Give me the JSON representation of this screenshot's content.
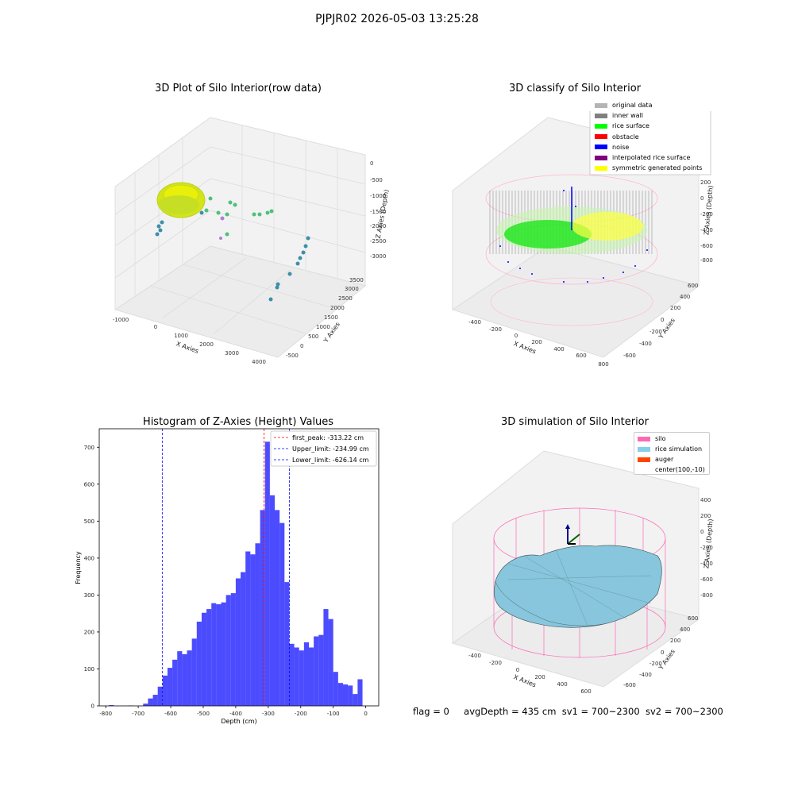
{
  "figure_title": "PJPJR02 2026-05-03 13:25:28",
  "panels": {
    "raw": {
      "title": "3D Plot of Silo Interior(row data)",
      "xlabel": "X Axies",
      "ylabel": "Y Axies",
      "zlabel": "Z Axies (Depth)",
      "xticks": [
        "-1000",
        "0",
        "1000",
        "2000",
        "3000",
        "4000"
      ],
      "yticks": [
        "-500",
        "0",
        "500",
        "1000",
        "1500",
        "2000",
        "2500",
        "3000",
        "3500"
      ],
      "zticks": [
        "0",
        "-500",
        "-1000",
        "-1500",
        "-2000",
        "-2500",
        "-3000"
      ]
    },
    "classify": {
      "title": "3D classify of Silo Interior",
      "xlabel": "X Axies",
      "ylabel": "Y Axies",
      "zlabel": "Z Axies (Depth)",
      "xticks": [
        "-400",
        "-200",
        "0",
        "200",
        "400",
        "600",
        "800"
      ],
      "yticks": [
        "-600",
        "-400",
        "-200",
        "0",
        "200",
        "400",
        "600"
      ],
      "zticks": [
        "200",
        "0",
        "-200",
        "-400",
        "-600",
        "-800"
      ],
      "legend": [
        {
          "label": "original data",
          "color": "#b4b4b4"
        },
        {
          "label": "inner wall",
          "color": "#808080"
        },
        {
          "label": "rice surface",
          "color": "#00ff00"
        },
        {
          "label": "obstacle",
          "color": "#ff0000"
        },
        {
          "label": "noise",
          "color": "#0000ff"
        },
        {
          "label": "interpolated rice surface",
          "color": "#800080"
        },
        {
          "label": "symmetric generated points",
          "color": "#ffff00"
        }
      ]
    },
    "simulation": {
      "title": "3D simulation of Silo Interior",
      "xlabel": "X Axies",
      "ylabel": "Y Axies",
      "zlabel": "Z Axies (Depth)",
      "xticks": [
        "-400",
        "-200",
        "0",
        "200",
        "400",
        "600"
      ],
      "yticks": [
        "-600",
        "-400",
        "-200",
        "0",
        "200",
        "400",
        "600"
      ],
      "zticks": [
        "400",
        "200",
        "0",
        "-200",
        "-400",
        "-600",
        "-800"
      ],
      "legend": [
        {
          "label": "silo",
          "color": "#ff69b4"
        },
        {
          "label": "rice simulation",
          "color": "#87ceeb"
        },
        {
          "label": "auger",
          "color": "#ff4500"
        },
        {
          "label": "center(100,-10)",
          "color": ""
        }
      ]
    }
  },
  "status": {
    "flag": "flag = 0",
    "avg": "avgDepth = 435 cm",
    "sv1": "sv1 = 700~2300",
    "sv2": "sv2 = 700~2300"
  },
  "chart_data": {
    "type": "bar",
    "title": "Histogram of Z-Axies (Height) Values",
    "xlabel": "Depth (cm)",
    "ylabel": "Frequency",
    "xlim": [
      -820,
      40
    ],
    "ylim": [
      0,
      750
    ],
    "xticks": [
      -800,
      -700,
      -600,
      -500,
      -400,
      -300,
      -200,
      -100,
      0
    ],
    "yticks": [
      0,
      100,
      200,
      300,
      400,
      500,
      600,
      700
    ],
    "bar_color": "#0000ff",
    "bins": [
      {
        "x0": -790,
        "x1": -775,
        "count": 2
      },
      {
        "x0": -730,
        "x1": -715,
        "count": 1
      },
      {
        "x0": -685,
        "x1": -670,
        "count": 6
      },
      {
        "x0": -670,
        "x1": -655,
        "count": 20
      },
      {
        "x0": -655,
        "x1": -640,
        "count": 30
      },
      {
        "x0": -640,
        "x1": -625,
        "count": 52
      },
      {
        "x0": -625,
        "x1": -610,
        "count": 82
      },
      {
        "x0": -610,
        "x1": -595,
        "count": 103
      },
      {
        "x0": -595,
        "x1": -580,
        "count": 125
      },
      {
        "x0": -580,
        "x1": -565,
        "count": 148
      },
      {
        "x0": -565,
        "x1": -550,
        "count": 140
      },
      {
        "x0": -550,
        "x1": -535,
        "count": 150
      },
      {
        "x0": -535,
        "x1": -520,
        "count": 182
      },
      {
        "x0": -520,
        "x1": -505,
        "count": 228
      },
      {
        "x0": -505,
        "x1": -490,
        "count": 252
      },
      {
        "x0": -490,
        "x1": -475,
        "count": 262
      },
      {
        "x0": -475,
        "x1": -460,
        "count": 278
      },
      {
        "x0": -460,
        "x1": -445,
        "count": 275
      },
      {
        "x0": -445,
        "x1": -430,
        "count": 280
      },
      {
        "x0": -430,
        "x1": -415,
        "count": 300
      },
      {
        "x0": -415,
        "x1": -400,
        "count": 305
      },
      {
        "x0": -400,
        "x1": -385,
        "count": 345
      },
      {
        "x0": -385,
        "x1": -370,
        "count": 362
      },
      {
        "x0": -370,
        "x1": -355,
        "count": 418
      },
      {
        "x0": -355,
        "x1": -340,
        "count": 410
      },
      {
        "x0": -340,
        "x1": -325,
        "count": 440
      },
      {
        "x0": -325,
        "x1": -310,
        "count": 530
      },
      {
        "x0": -310,
        "x1": -295,
        "count": 715
      },
      {
        "x0": -295,
        "x1": -280,
        "count": 570
      },
      {
        "x0": -280,
        "x1": -265,
        "count": 530
      },
      {
        "x0": -265,
        "x1": -250,
        "count": 495
      },
      {
        "x0": -250,
        "x1": -235,
        "count": 335
      },
      {
        "x0": -235,
        "x1": -220,
        "count": 168
      },
      {
        "x0": -220,
        "x1": -205,
        "count": 158
      },
      {
        "x0": -205,
        "x1": -190,
        "count": 150
      },
      {
        "x0": -190,
        "x1": -175,
        "count": 172
      },
      {
        "x0": -175,
        "x1": -160,
        "count": 158
      },
      {
        "x0": -160,
        "x1": -145,
        "count": 188
      },
      {
        "x0": -145,
        "x1": -130,
        "count": 192
      },
      {
        "x0": -130,
        "x1": -115,
        "count": 262
      },
      {
        "x0": -115,
        "x1": -100,
        "count": 235
      },
      {
        "x0": -100,
        "x1": -85,
        "count": 92
      },
      {
        "x0": -85,
        "x1": -70,
        "count": 62
      },
      {
        "x0": -70,
        "x1": -55,
        "count": 58
      },
      {
        "x0": -55,
        "x1": -40,
        "count": 55
      },
      {
        "x0": -40,
        "x1": -25,
        "count": 32
      },
      {
        "x0": -25,
        "x1": -10,
        "count": 72
      }
    ],
    "vlines": [
      {
        "label": "first_peak: -313.22 cm",
        "x": -313.22,
        "color": "#ff0000"
      },
      {
        "label": "Upper_limit: -234.99 cm",
        "x": -234.99,
        "color": "#0000ff"
      },
      {
        "label": "Lower_limit: -626.14 cm",
        "x": -626.14,
        "color": "#0000ff"
      }
    ],
    "legend_position": "upper right"
  }
}
